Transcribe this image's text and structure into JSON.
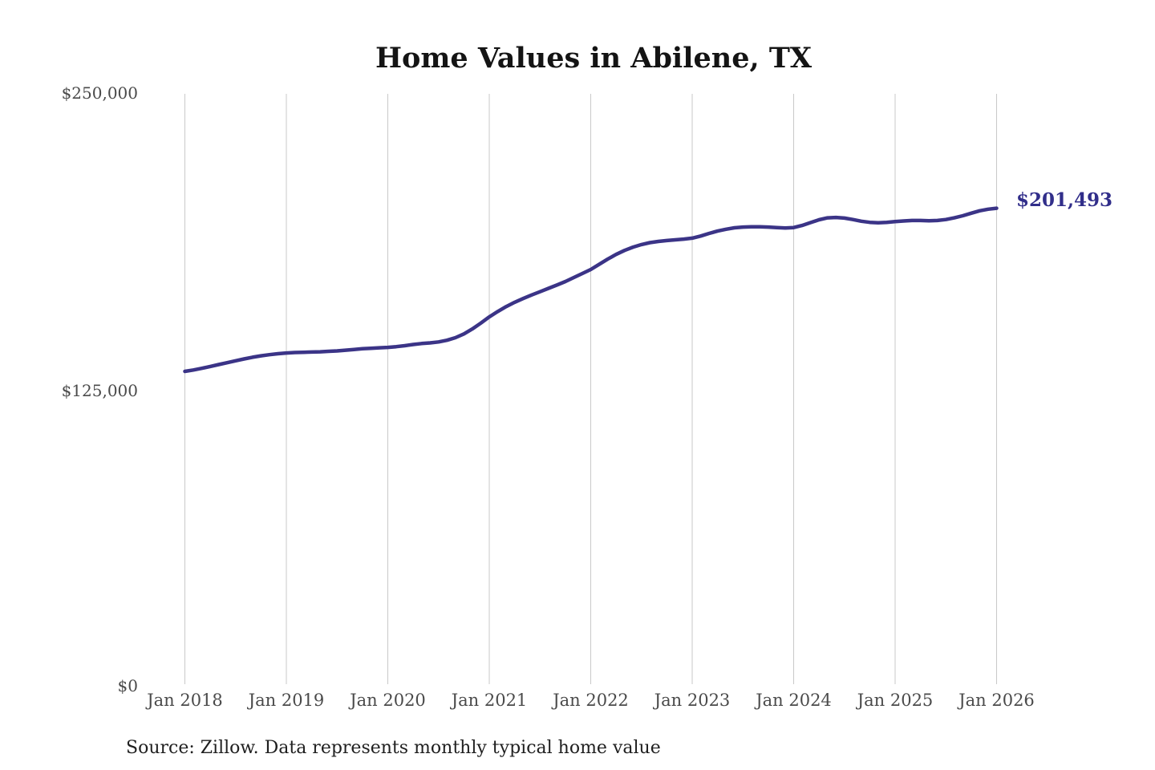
{
  "title": "Home Values in Abilene, TX",
  "annotation": {
    "end_label": "$201,493"
  },
  "footer": {
    "source_note": "Source: Zillow. Data represents monthly typical home value"
  },
  "colors": {
    "background": "#ffffff",
    "line": "#3b3487",
    "end_label": "#312e8a",
    "gridline": "#c9c9c9",
    "tick_text": "#4a4a4a",
    "title_text": "#141414"
  },
  "chart_data": {
    "type": "line",
    "title": "Home Values in Abilene, TX",
    "xlabel": "",
    "ylabel": "",
    "ylim": [
      0,
      250000
    ],
    "grid": "vertical-only",
    "legend_position": "none",
    "frequency": "monthly",
    "x_start": "Jan 2018",
    "x_end": "Jan 2026",
    "x_ticks": [
      "Jan 2018",
      "Jan 2019",
      "Jan 2020",
      "Jan 2021",
      "Jan 2022",
      "Jan 2023",
      "Jan 2024",
      "Jan 2025",
      "Jan 2026"
    ],
    "y_ticks": [
      {
        "value": 250000,
        "label": "$250,000"
      },
      {
        "value": 125000,
        "label": "$125,000"
      },
      {
        "value": 0,
        "label": "$0"
      }
    ],
    "series": [
      {
        "name": "Monthly typical home value",
        "color": "#3b3487",
        "values": [
          132300,
          132900,
          133600,
          134400,
          135200,
          136000,
          136800,
          137600,
          138300,
          138900,
          139400,
          139800,
          140100,
          140300,
          140400,
          140500,
          140600,
          140800,
          141000,
          141300,
          141600,
          141900,
          142100,
          142300,
          142500,
          142800,
          143200,
          143700,
          144100,
          144400,
          144800,
          145500,
          146600,
          148200,
          150300,
          152800,
          155400,
          157700,
          159800,
          161600,
          163200,
          164700,
          166100,
          167500,
          168900,
          170400,
          172100,
          173800,
          175500,
          177700,
          179900,
          181900,
          183600,
          185000,
          186100,
          186900,
          187400,
          187800,
          188100,
          188400,
          188800,
          189700,
          190800,
          191800,
          192600,
          193200,
          193500,
          193600,
          193600,
          193500,
          193300,
          193100,
          193300,
          194200,
          195400,
          196600,
          197400,
          197600,
          197300,
          196700,
          196000,
          195500,
          195300,
          195500,
          195800,
          196100,
          196300,
          196300,
          196200,
          196300,
          196700,
          197400,
          198300,
          199400,
          200400,
          201100,
          201493
        ]
      }
    ],
    "last_point": {
      "x": "Jan 2026",
      "value": 201493,
      "label": "$201,493"
    }
  }
}
